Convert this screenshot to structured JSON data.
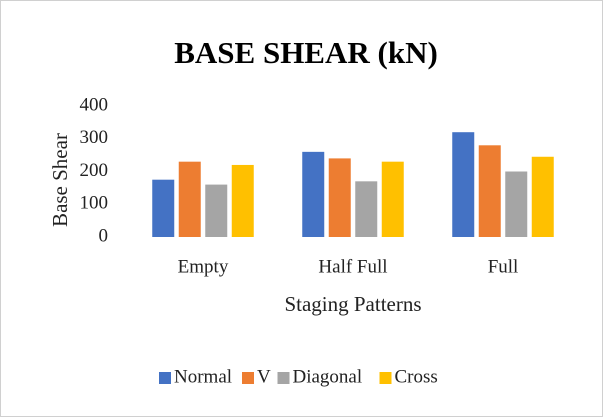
{
  "chart_data": {
    "type": "bar",
    "title": "BASE SHEAR (kN)",
    "x_label": "Staging Patterns",
    "y_label": "Base Shear",
    "categories": [
      "Empty",
      "Half Full",
      "Full"
    ],
    "series": [
      {
        "name": "Normal",
        "color": "#4472c4",
        "values": [
          175,
          260,
          320
        ]
      },
      {
        "name": "V",
        "color": "#ed7d31",
        "values": [
          230,
          240,
          280
        ]
      },
      {
        "name": "Diagonal",
        "color": "#a5a5a5",
        "values": [
          160,
          170,
          200
        ]
      },
      {
        "name": "Cross",
        "color": "#ffc000",
        "values": [
          220,
          230,
          245
        ]
      }
    ],
    "ylim": [
      0,
      400
    ],
    "yticks": [
      0,
      100,
      200,
      300,
      400
    ],
    "grid": false,
    "legend": "bottom"
  }
}
